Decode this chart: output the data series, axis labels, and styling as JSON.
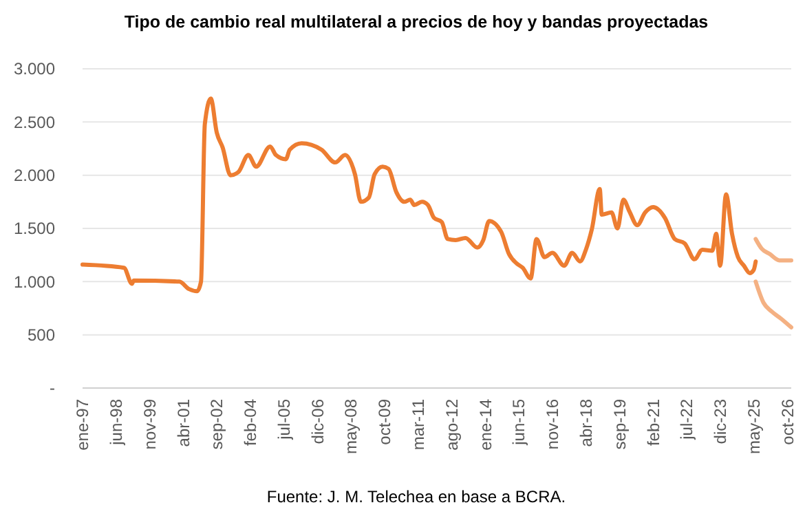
{
  "chart_data": {
    "type": "line",
    "title": "Tipo de cambio real multilateral a precios de hoy y bandas proyectadas",
    "annotations": [
      "Fuente: J. M. Telechea en base a BCRA."
    ],
    "series": [
      {
        "color": "#ed7d31",
        "x": [
          "1997-01",
          "1998-10",
          "1999-02",
          "1999-03",
          "2001-02",
          "2001-07",
          "2001-11",
          "2002-01",
          "2002-03",
          "2002-06",
          "2002-09",
          "2002-12",
          "2003-04",
          "2003-08",
          "2004-01",
          "2004-05",
          "2004-12",
          "2005-03",
          "2005-08",
          "2005-10",
          "2006-04",
          "2007-02",
          "2007-09",
          "2008-02",
          "2008-07",
          "2008-10",
          "2009-02",
          "2009-05",
          "2009-09",
          "2009-12",
          "2010-04",
          "2010-08",
          "2010-11",
          "2011-01",
          "2011-05",
          "2011-08",
          "2011-11",
          "2012-03",
          "2012-06",
          "2012-10",
          "2013-03",
          "2013-09",
          "2013-12",
          "2014-03",
          "2014-09",
          "2015-01",
          "2015-05",
          "2015-08",
          "2015-12",
          "2016-03",
          "2016-07",
          "2016-11",
          "2017-05",
          "2017-09",
          "2018-01",
          "2018-04",
          "2018-07",
          "2018-11",
          "2018-12",
          "2019-05",
          "2019-08",
          "2019-11",
          "2020-02",
          "2020-06",
          "2020-10",
          "2021-02",
          "2021-08",
          "2022-01",
          "2022-06",
          "2022-11",
          "2023-03",
          "2023-08",
          "2023-10",
          "2023-12",
          "2024-03",
          "2024-06",
          "2024-09",
          "2024-12",
          "2025-03",
          "2025-05",
          "2025-06"
        ],
        "values": [
          1160,
          1130,
          980,
          1010,
          1000,
          930,
          910,
          1000,
          2480,
          2720,
          2400,
          2260,
          2000,
          2030,
          2190,
          2080,
          2270,
          2190,
          2150,
          2240,
          2300,
          2240,
          2120,
          2190,
          2010,
          1750,
          1790,
          2010,
          2080,
          2060,
          1840,
          1750,
          1770,
          1720,
          1750,
          1720,
          1600,
          1560,
          1400,
          1390,
          1410,
          1320,
          1390,
          1570,
          1470,
          1260,
          1170,
          1130,
          1030,
          1400,
          1230,
          1270,
          1150,
          1270,
          1190,
          1300,
          1490,
          1870,
          1630,
          1650,
          1500,
          1770,
          1660,
          1530,
          1650,
          1700,
          1600,
          1400,
          1360,
          1210,
          1300,
          1290,
          1450,
          1150,
          1820,
          1450,
          1230,
          1150,
          1080,
          1110,
          1190
        ]
      },
      {
        "color": "#f4b183",
        "x": [
          "2025-06",
          "2025-09",
          "2026-01",
          "2026-06",
          "2026-12"
        ],
        "values": [
          1400,
          1310,
          1260,
          1200,
          1200
        ]
      },
      {
        "color": "#f4b183",
        "x": [
          "2025-06",
          "2025-10",
          "2026-02",
          "2026-07",
          "2026-12"
        ],
        "values": [
          1000,
          800,
          720,
          650,
          570
        ]
      }
    ],
    "xlim": [
      "1997-01",
      "2026-12"
    ],
    "xticks": [
      {
        "value": "1997-01",
        "label": "ene-97"
      },
      {
        "value": "1998-06",
        "label": "jun-98"
      },
      {
        "value": "1999-11",
        "label": "nov-99"
      },
      {
        "value": "2001-04",
        "label": "abr-01"
      },
      {
        "value": "2002-09",
        "label": "sep-02"
      },
      {
        "value": "2004-02",
        "label": "feb-04"
      },
      {
        "value": "2005-07",
        "label": "jul-05"
      },
      {
        "value": "2006-12",
        "label": "dic-06"
      },
      {
        "value": "2008-05",
        "label": "may-08"
      },
      {
        "value": "2009-10",
        "label": "oct-09"
      },
      {
        "value": "2011-03",
        "label": "mar-11"
      },
      {
        "value": "2012-08",
        "label": "ago-12"
      },
      {
        "value": "2014-01",
        "label": "ene-14"
      },
      {
        "value": "2015-06",
        "label": "jun-15"
      },
      {
        "value": "2016-11",
        "label": "nov-16"
      },
      {
        "value": "2018-04",
        "label": "abr-18"
      },
      {
        "value": "2019-09",
        "label": "sep-19"
      },
      {
        "value": "2021-02",
        "label": "feb-21"
      },
      {
        "value": "2022-07",
        "label": "jul-22"
      },
      {
        "value": "2023-12",
        "label": "dic-23"
      },
      {
        "value": "2025-05",
        "label": "may-25"
      },
      {
        "value": "2026-10",
        "label": "oct-26"
      }
    ],
    "ylim": [
      0,
      3000
    ],
    "yticks": [
      {
        "value": 0,
        "label": "-"
      },
      500,
      {
        "value": 1000,
        "label": "1.000"
      },
      {
        "value": 1500,
        "label": "1.500"
      },
      {
        "value": 2000,
        "label": "2.000"
      },
      {
        "value": 2500,
        "label": "2.500"
      },
      {
        "value": 3000,
        "label": "3.000"
      }
    ],
    "grid": "y",
    "marker": "none",
    "line_style": "solid"
  }
}
